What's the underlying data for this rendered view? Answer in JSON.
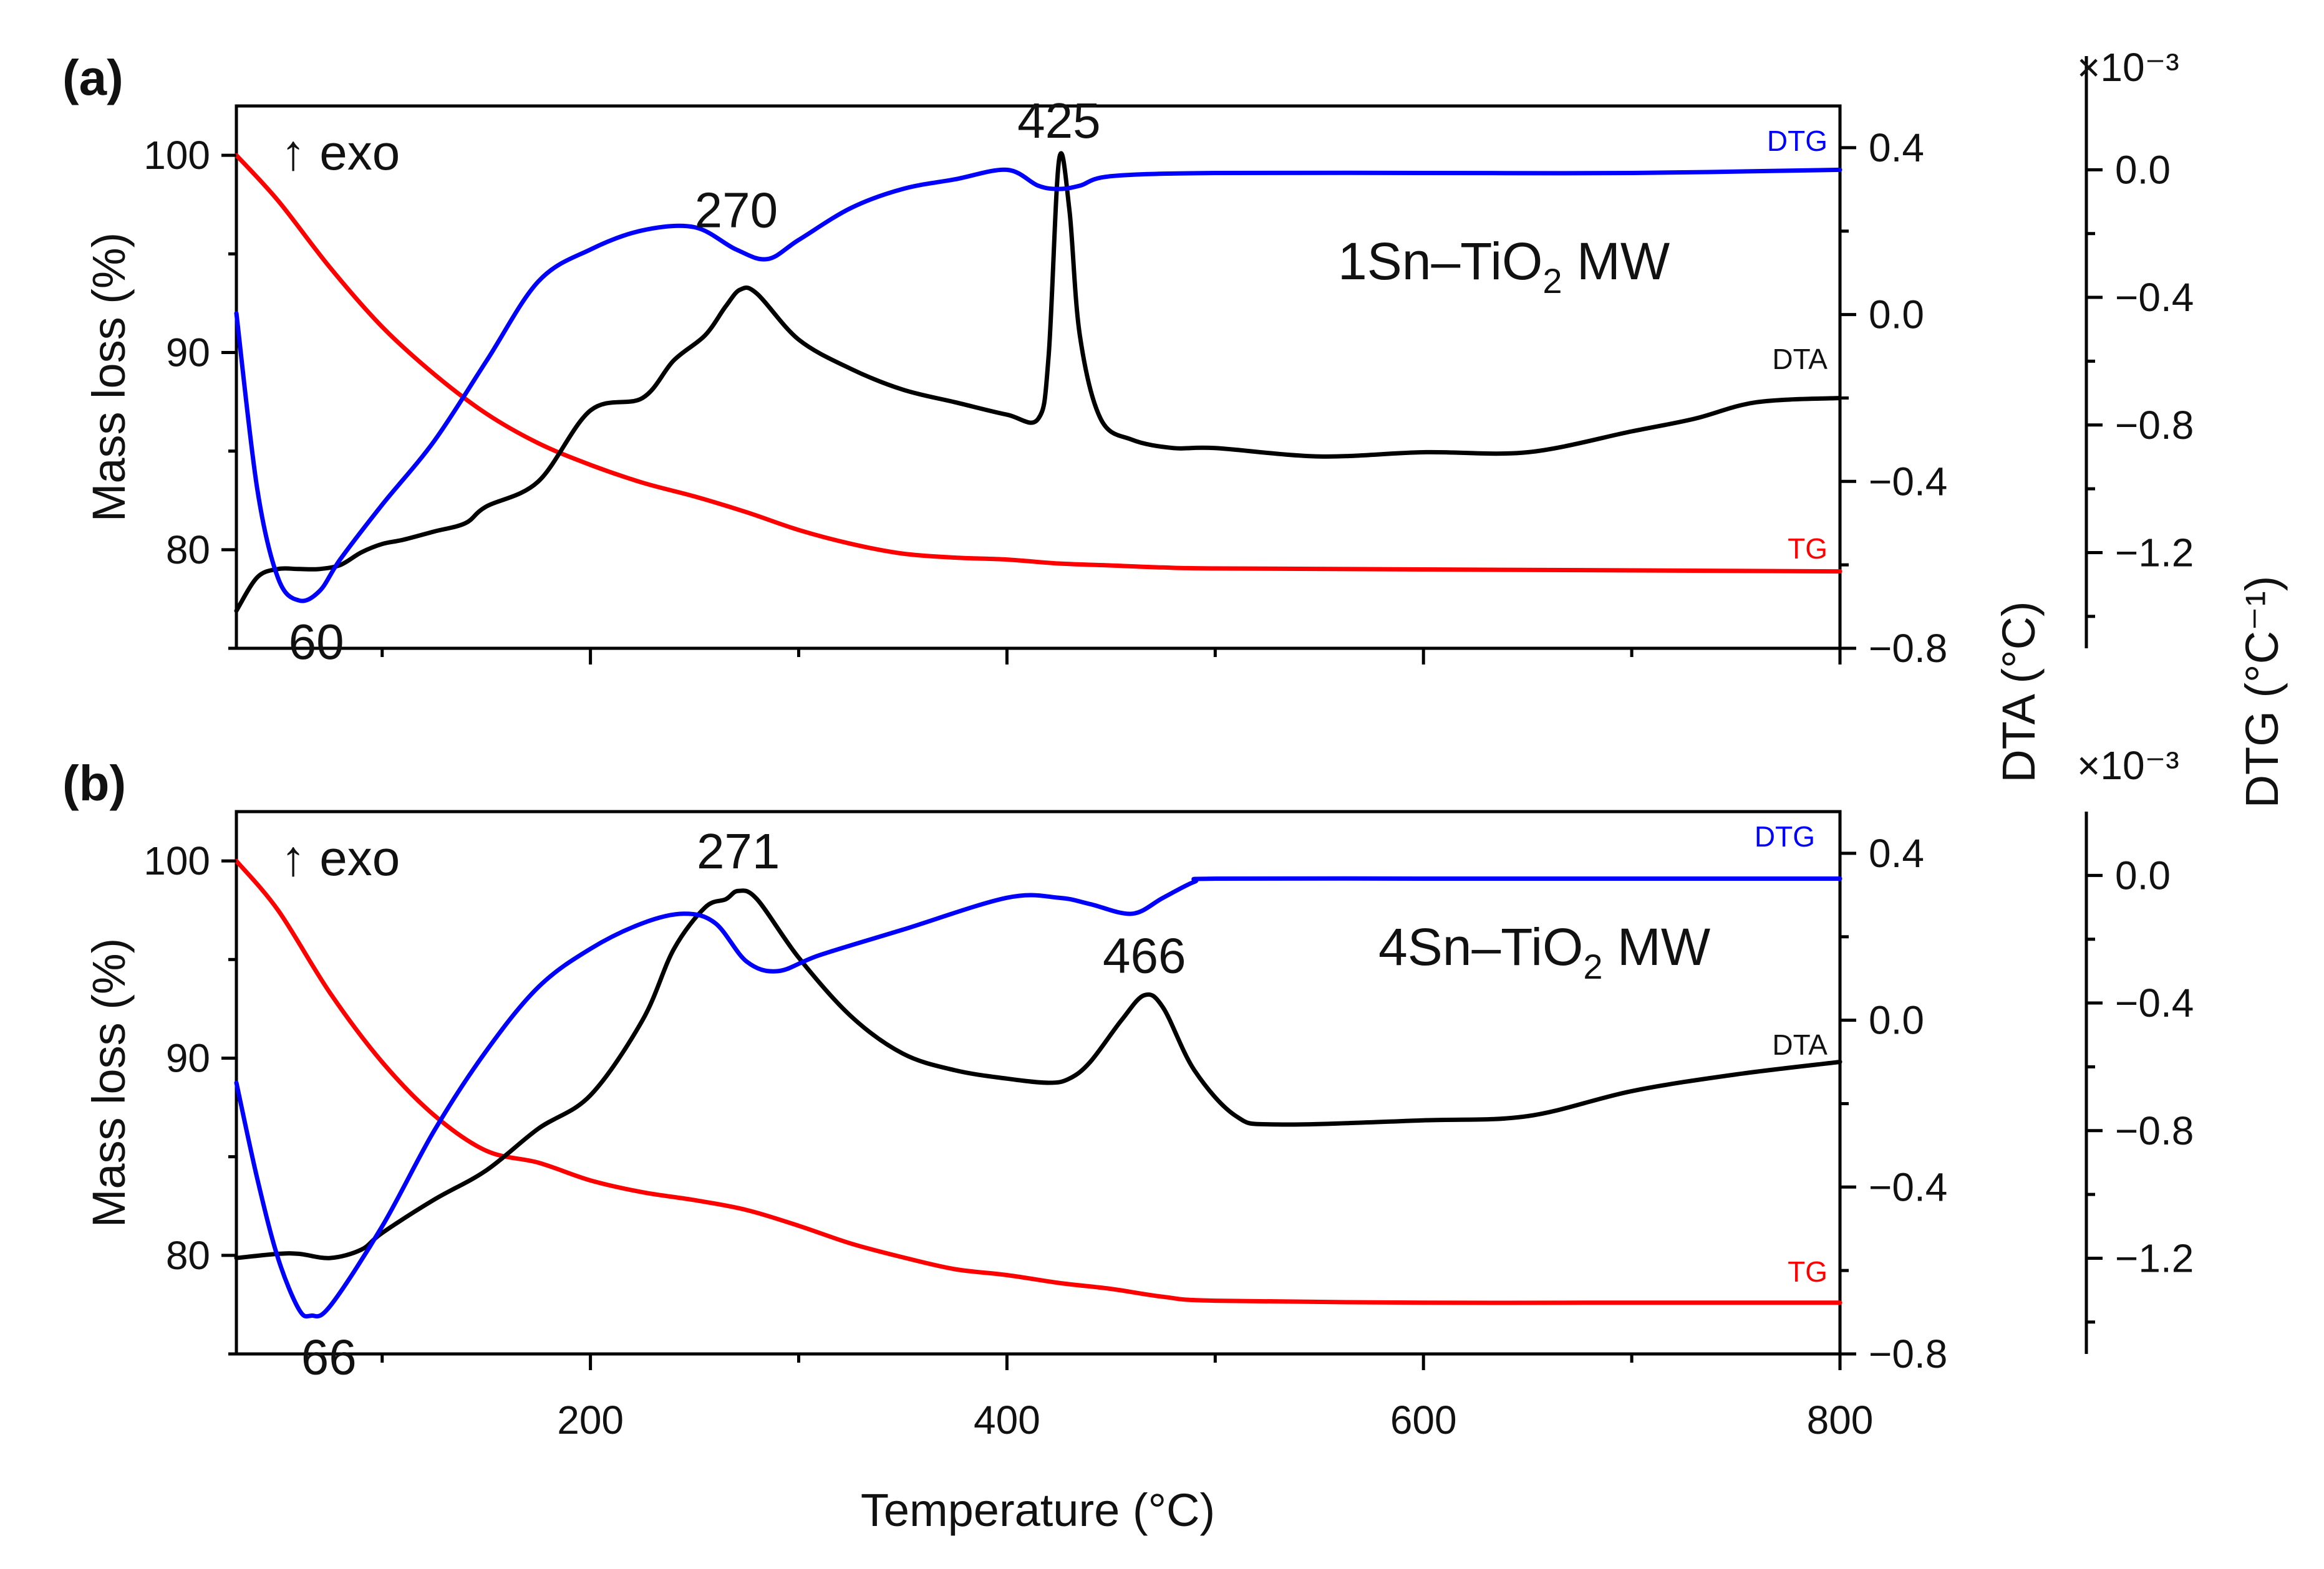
{
  "chart_data": {
    "type": "line",
    "x_label": "Temperature (°C)",
    "x_ticks": [
      "200",
      "400",
      "600",
      "800"
    ],
    "xlim": [
      30,
      800
    ],
    "right_axis_titles": {
      "dta": "DTA (°C)",
      "dtg": "DTG (°C⁻¹)"
    },
    "dtg_multiplier": "×10⁻³",
    "colors": {
      "TG": "#ff0000",
      "DTA": "#000000",
      "DTG": "#0000ff"
    },
    "panels": [
      {
        "panel_label": "(a)",
        "sample_label": {
          "prefix": "1Sn–TiO",
          "sub": "2",
          "suffix": " MW"
        },
        "exo_label": "↑ exo",
        "left_axis_title": "Mass loss (%)",
        "ylim_mass": [
          75,
          102.5
        ],
        "ylim_dta": [
          -0.8,
          0.5
        ],
        "ylim_dtg": [
          -1.5,
          0.2
        ],
        "mass_ticks": [
          {
            "v": 80,
            "t": "80"
          },
          {
            "v": 90,
            "t": "90"
          },
          {
            "v": 100,
            "t": "100"
          }
        ],
        "dta_ticks": [
          {
            "v": -0.8,
            "t": "−0.8"
          },
          {
            "v": -0.4,
            "t": "−0.4"
          },
          {
            "v": 0.0,
            "t": "0.0"
          },
          {
            "v": 0.4,
            "t": "0.4"
          }
        ],
        "dtg_ticks": [
          {
            "v": -1.2,
            "t": "−1.2"
          },
          {
            "v": -0.8,
            "t": "−0.8"
          },
          {
            "v": -0.4,
            "t": "−0.4"
          },
          {
            "v": 0.0,
            "t": "0.0"
          }
        ],
        "series_labels": {
          "DTG": "DTG",
          "DTA": "DTA",
          "TG": "TG"
        },
        "annotations": [
          {
            "text": "60",
            "x": 60,
            "series": "DTG",
            "pos": "below"
          },
          {
            "text": "270",
            "x": 270,
            "series": "DTG",
            "pos": "above"
          },
          {
            "text": "425",
            "x": 425,
            "series": "DTA",
            "pos": "above"
          }
        ],
        "series": [
          {
            "name": "TG",
            "axis": "mass",
            "x": [
              30,
              50,
              75,
              100,
              125,
              150,
              175,
              200,
              225,
              250,
              275,
              300,
              325,
              350,
              375,
              400,
              425,
              450,
              475,
              500,
              600,
              700,
              800
            ],
            "y": [
              100,
              97.7,
              94.3,
              91.3,
              88.9,
              86.9,
              85.4,
              84.3,
              83.4,
              82.7,
              81.9,
              81.0,
              80.3,
              79.8,
              79.6,
              79.5,
              79.3,
              79.2,
              79.1,
              79.05,
              79.0,
              78.95,
              78.9
            ]
          },
          {
            "name": "DTA",
            "axis": "dta",
            "x": [
              30,
              40,
              50,
              60,
              70,
              80,
              90,
              100,
              110,
              125,
              140,
              150,
              175,
              200,
              225,
              240,
              255,
              265,
              272,
              280,
              300,
              325,
              350,
              375,
              400,
              415,
              420,
              425,
              430,
              435,
              445,
              460,
              480,
              500,
              550,
              600,
              650,
              700,
              730,
              760,
              800
            ],
            "y": [
              -0.71,
              -0.63,
              -0.61,
              -0.61,
              -0.61,
              -0.6,
              -0.57,
              -0.55,
              -0.54,
              -0.52,
              -0.5,
              -0.46,
              -0.4,
              -0.23,
              -0.2,
              -0.11,
              -0.05,
              0.02,
              0.06,
              0.05,
              -0.06,
              -0.13,
              -0.18,
              -0.21,
              -0.24,
              -0.25,
              -0.1,
              0.37,
              0.25,
              -0.05,
              -0.25,
              -0.3,
              -0.32,
              -0.32,
              -0.34,
              -0.33,
              -0.33,
              -0.28,
              -0.25,
              -0.21,
              -0.2
            ]
          },
          {
            "name": "DTG",
            "axis": "dtg",
            "x": [
              30,
              40,
              50,
              60,
              70,
              80,
              100,
              125,
              150,
              175,
              200,
              225,
              250,
              270,
              285,
              300,
              325,
              350,
              375,
              400,
              415,
              425,
              435,
              450,
              500,
              600,
              700,
              800
            ],
            "y": [
              -0.45,
              -1.0,
              -1.28,
              -1.35,
              -1.32,
              -1.22,
              -1.05,
              -0.85,
              -0.6,
              -0.35,
              -0.25,
              -0.19,
              -0.18,
              -0.25,
              -0.28,
              -0.22,
              -0.12,
              -0.06,
              -0.03,
              0.0,
              -0.05,
              -0.06,
              -0.05,
              -0.02,
              -0.01,
              -0.01,
              -0.01,
              0.0
            ]
          }
        ]
      },
      {
        "panel_label": "(b)",
        "sample_label": {
          "prefix": "4Sn–TiO",
          "sub": "2",
          "suffix": " MW"
        },
        "exo_label": "↑ exo",
        "left_axis_title": "Mass loss (%)",
        "ylim_mass": [
          75,
          102.5
        ],
        "ylim_dta": [
          -0.8,
          0.5
        ],
        "ylim_dtg": [
          -1.5,
          0.2
        ],
        "mass_ticks": [
          {
            "v": 80,
            "t": "80"
          },
          {
            "v": 90,
            "t": "90"
          },
          {
            "v": 100,
            "t": "100"
          }
        ],
        "dta_ticks": [
          {
            "v": -0.8,
            "t": "−0.8"
          },
          {
            "v": -0.4,
            "t": "−0.4"
          },
          {
            "v": 0.0,
            "t": "0.0"
          },
          {
            "v": 0.4,
            "t": "0.4"
          }
        ],
        "dtg_ticks": [
          {
            "v": -1.2,
            "t": "−1.2"
          },
          {
            "v": -0.8,
            "t": "−0.8"
          },
          {
            "v": -0.4,
            "t": "−0.4"
          },
          {
            "v": 0.0,
            "t": "0.0"
          }
        ],
        "series_labels": {
          "DTG": "DTG",
          "DTA": "DTA",
          "TG": "TG"
        },
        "annotations": [
          {
            "text": "66",
            "x": 66,
            "series": "DTG",
            "pos": "below"
          },
          {
            "text": "271",
            "x": 271,
            "series": "DTA",
            "pos": "above"
          },
          {
            "text": "466",
            "x": 466,
            "series": "DTA",
            "pos": "above"
          }
        ],
        "series": [
          {
            "name": "TG",
            "axis": "mass",
            "x": [
              30,
              50,
              75,
              100,
              125,
              150,
              175,
              200,
              225,
              250,
              275,
              300,
              325,
              350,
              375,
              400,
              425,
              450,
              475,
              500,
              600,
              700,
              800
            ],
            "y": [
              100,
              97.5,
              93.3,
              89.8,
              87.1,
              85.3,
              84.7,
              83.8,
              83.2,
              82.8,
              82.3,
              81.5,
              80.6,
              79.9,
              79.3,
              79.0,
              78.6,
              78.3,
              77.9,
              77.7,
              77.6,
              77.6,
              77.6
            ]
          },
          {
            "name": "DTA",
            "axis": "dta",
            "x": [
              30,
              50,
              60,
              75,
              90,
              100,
              125,
              150,
              175,
              200,
              225,
              240,
              255,
              265,
              271,
              280,
              300,
              325,
              350,
              375,
              400,
              420,
              430,
              440,
              455,
              466,
              475,
              490,
              510,
              530,
              600,
              650,
              700,
              750,
              800
            ],
            "y": [
              -0.57,
              -0.56,
              -0.56,
              -0.57,
              -0.55,
              -0.51,
              -0.43,
              -0.36,
              -0.26,
              -0.18,
              0.0,
              0.17,
              0.27,
              0.29,
              0.31,
              0.29,
              0.15,
              0.01,
              -0.08,
              -0.12,
              -0.14,
              -0.15,
              -0.14,
              -0.1,
              0.0,
              0.06,
              0.03,
              -0.12,
              -0.23,
              -0.25,
              -0.24,
              -0.23,
              -0.17,
              -0.13,
              -0.1
            ]
          },
          {
            "name": "DTG",
            "axis": "dtg",
            "x": [
              30,
              40,
              50,
              60,
              66,
              75,
              100,
              125,
              150,
              175,
              200,
              225,
              245,
              260,
              275,
              290,
              310,
              350,
              400,
              425,
              440,
              460,
              475,
              490,
              500,
              600,
              700,
              800
            ],
            "y": [
              -0.65,
              -0.95,
              -1.2,
              -1.36,
              -1.38,
              -1.35,
              -1.1,
              -0.8,
              -0.55,
              -0.35,
              -0.23,
              -0.15,
              -0.12,
              -0.15,
              -0.27,
              -0.3,
              -0.25,
              -0.17,
              -0.07,
              -0.07,
              -0.09,
              -0.12,
              -0.07,
              -0.02,
              -0.01,
              -0.01,
              -0.01,
              -0.01
            ]
          }
        ]
      }
    ]
  }
}
